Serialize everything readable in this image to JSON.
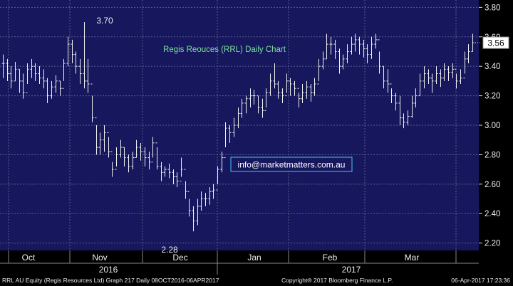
{
  "chart_data": {
    "type": "ohlc",
    "title": "Regis Reouces (RRL) Daily Chart",
    "watermark": "info@marketmatters.com.au",
    "ylim": [
      2.15,
      3.85
    ],
    "yticks": [
      "2.20",
      "2.40",
      "2.60",
      "2.80",
      "3.00",
      "3.20",
      "3.40",
      "3.60",
      "3.80"
    ],
    "last_price_label": "3.56",
    "annotations": {
      "high_label": "3.70",
      "low_label": "2.28"
    },
    "months": [
      "Oct",
      "Nov",
      "Dec",
      "Jan",
      "Feb",
      "Mar"
    ],
    "years": [
      "2016",
      "2017"
    ],
    "colors": {
      "background": "#16175c",
      "grid": "#5a5c8f",
      "bars": "#f0f0f0",
      "title": "#7fe0a0",
      "watermark_border": "#4fc3f7"
    },
    "grid": true,
    "series": [
      {
        "h": 3.48,
        "l": 3.32,
        "c": 3.42
      },
      {
        "h": 3.45,
        "l": 3.3,
        "c": 3.35
      },
      {
        "h": 3.4,
        "l": 3.25,
        "c": 3.3
      },
      {
        "h": 3.43,
        "l": 3.3,
        "c": 3.38
      },
      {
        "h": 3.38,
        "l": 3.22,
        "c": 3.3
      },
      {
        "h": 3.35,
        "l": 3.18,
        "c": 3.22
      },
      {
        "h": 3.42,
        "l": 3.28,
        "c": 3.38
      },
      {
        "h": 3.45,
        "l": 3.32,
        "c": 3.4
      },
      {
        "h": 3.42,
        "l": 3.3,
        "c": 3.35
      },
      {
        "h": 3.4,
        "l": 3.28,
        "c": 3.32
      },
      {
        "h": 3.38,
        "l": 3.25,
        "c": 3.3
      },
      {
        "h": 3.32,
        "l": 3.15,
        "c": 3.2
      },
      {
        "h": 3.3,
        "l": 3.18,
        "c": 3.26
      },
      {
        "h": 3.34,
        "l": 3.22,
        "c": 3.3
      },
      {
        "h": 3.3,
        "l": 3.2,
        "c": 3.25
      },
      {
        "h": 3.45,
        "l": 3.3,
        "c": 3.42
      },
      {
        "h": 3.6,
        "l": 3.4,
        "c": 3.55
      },
      {
        "h": 3.58,
        "l": 3.42,
        "c": 3.48
      },
      {
        "h": 3.5,
        "l": 3.35,
        "c": 3.4
      },
      {
        "h": 3.45,
        "l": 3.28,
        "c": 3.35
      },
      {
        "h": 3.7,
        "l": 3.25,
        "c": 3.3
      },
      {
        "h": 3.45,
        "l": 3.22,
        "c": 3.28
      },
      {
        "h": 3.2,
        "l": 3.02,
        "c": 3.05
      },
      {
        "h": 3.0,
        "l": 2.8,
        "c": 2.85
      },
      {
        "h": 2.95,
        "l": 2.8,
        "c": 2.9
      },
      {
        "h": 3.0,
        "l": 2.82,
        "c": 2.95
      },
      {
        "h": 2.92,
        "l": 2.78,
        "c": 2.82
      },
      {
        "h": 2.75,
        "l": 2.65,
        "c": 2.7
      },
      {
        "h": 2.85,
        "l": 2.72,
        "c": 2.8
      },
      {
        "h": 2.9,
        "l": 2.78,
        "c": 2.85
      },
      {
        "h": 2.85,
        "l": 2.72,
        "c": 2.78
      },
      {
        "h": 2.8,
        "l": 2.68,
        "c": 2.72
      },
      {
        "h": 2.82,
        "l": 2.7,
        "c": 2.78
      },
      {
        "h": 2.9,
        "l": 2.78,
        "c": 2.85
      },
      {
        "h": 2.88,
        "l": 2.76,
        "c": 2.82
      },
      {
        "h": 2.85,
        "l": 2.72,
        "c": 2.78
      },
      {
        "h": 2.82,
        "l": 2.7,
        "c": 2.75
      },
      {
        "h": 2.92,
        "l": 2.78,
        "c": 2.88
      },
      {
        "h": 2.85,
        "l": 2.7,
        "c": 2.72
      },
      {
        "h": 2.75,
        "l": 2.62,
        "c": 2.68
      },
      {
        "h": 2.72,
        "l": 2.65,
        "c": 2.7
      },
      {
        "h": 2.74,
        "l": 2.64,
        "c": 2.68
      },
      {
        "h": 2.7,
        "l": 2.6,
        "c": 2.65
      },
      {
        "h": 2.68,
        "l": 2.58,
        "c": 2.62
      },
      {
        "h": 2.78,
        "l": 2.65,
        "c": 2.7
      },
      {
        "h": 2.62,
        "l": 2.5,
        "c": 2.55
      },
      {
        "h": 2.5,
        "l": 2.38,
        "c": 2.42
      },
      {
        "h": 2.45,
        "l": 2.28,
        "c": 2.35
      },
      {
        "h": 2.5,
        "l": 2.32,
        "c": 2.45
      },
      {
        "h": 2.55,
        "l": 2.42,
        "c": 2.5
      },
      {
        "h": 2.54,
        "l": 2.45,
        "c": 2.5
      },
      {
        "h": 2.58,
        "l": 2.46,
        "c": 2.55
      },
      {
        "h": 2.6,
        "l": 2.5,
        "c": 2.56
      },
      {
        "h": 2.72,
        "l": 2.6,
        "c": 2.7
      },
      {
        "h": 2.82,
        "l": 2.68,
        "c": 2.78
      },
      {
        "h": 3.02,
        "l": 2.85,
        "c": 2.98
      },
      {
        "h": 3.0,
        "l": 2.88,
        "c": 2.95
      },
      {
        "h": 3.05,
        "l": 2.92,
        "c": 3.0
      },
      {
        "h": 3.12,
        "l": 2.98,
        "c": 3.08
      },
      {
        "h": 3.18,
        "l": 3.05,
        "c": 3.15
      },
      {
        "h": 3.2,
        "l": 3.08,
        "c": 3.18
      },
      {
        "h": 3.25,
        "l": 3.12,
        "c": 3.2
      },
      {
        "h": 3.24,
        "l": 3.14,
        "c": 3.2
      },
      {
        "h": 3.2,
        "l": 3.08,
        "c": 3.12
      },
      {
        "h": 3.18,
        "l": 3.05,
        "c": 3.1
      },
      {
        "h": 3.25,
        "l": 3.12,
        "c": 3.22
      },
      {
        "h": 3.35,
        "l": 3.2,
        "c": 3.3
      },
      {
        "h": 3.42,
        "l": 3.25,
        "c": 3.28
      },
      {
        "h": 3.3,
        "l": 3.18,
        "c": 3.22
      },
      {
        "h": 3.25,
        "l": 3.15,
        "c": 3.2
      },
      {
        "h": 3.35,
        "l": 3.22,
        "c": 3.3
      },
      {
        "h": 3.32,
        "l": 3.2,
        "c": 3.28
      },
      {
        "h": 3.3,
        "l": 3.2,
        "c": 3.25
      },
      {
        "h": 3.22,
        "l": 3.12,
        "c": 3.18
      },
      {
        "h": 3.28,
        "l": 3.15,
        "c": 3.22
      },
      {
        "h": 3.3,
        "l": 3.18,
        "c": 3.26
      },
      {
        "h": 3.28,
        "l": 3.16,
        "c": 3.22
      },
      {
        "h": 3.32,
        "l": 3.2,
        "c": 3.28
      },
      {
        "h": 3.45,
        "l": 3.3,
        "c": 3.4
      },
      {
        "h": 3.5,
        "l": 3.38,
        "c": 3.45
      },
      {
        "h": 3.62,
        "l": 3.45,
        "c": 3.55
      },
      {
        "h": 3.6,
        "l": 3.48,
        "c": 3.55
      },
      {
        "h": 3.58,
        "l": 3.45,
        "c": 3.5
      },
      {
        "h": 3.52,
        "l": 3.35,
        "c": 3.4
      },
      {
        "h": 3.48,
        "l": 3.38,
        "c": 3.45
      },
      {
        "h": 3.55,
        "l": 3.42,
        "c": 3.5
      },
      {
        "h": 3.6,
        "l": 3.48,
        "c": 3.55
      },
      {
        "h": 3.62,
        "l": 3.5,
        "c": 3.58
      },
      {
        "h": 3.6,
        "l": 3.48,
        "c": 3.55
      },
      {
        "h": 3.58,
        "l": 3.46,
        "c": 3.52
      },
      {
        "h": 3.55,
        "l": 3.42,
        "c": 3.48
      },
      {
        "h": 3.6,
        "l": 3.45,
        "c": 3.55
      },
      {
        "h": 3.62,
        "l": 3.52,
        "c": 3.58
      },
      {
        "h": 3.5,
        "l": 3.35,
        "c": 3.4
      },
      {
        "h": 3.4,
        "l": 3.25,
        "c": 3.3
      },
      {
        "h": 3.38,
        "l": 3.22,
        "c": 3.28
      },
      {
        "h": 3.25,
        "l": 3.15,
        "c": 3.2
      },
      {
        "h": 3.22,
        "l": 3.1,
        "c": 3.15
      },
      {
        "h": 3.2,
        "l": 3.0,
        "c": 3.05
      },
      {
        "h": 3.08,
        "l": 2.98,
        "c": 3.02
      },
      {
        "h": 3.1,
        "l": 3.0,
        "c": 3.06
      },
      {
        "h": 3.2,
        "l": 3.05,
        "c": 3.15
      },
      {
        "h": 3.25,
        "l": 3.12,
        "c": 3.2
      },
      {
        "h": 3.35,
        "l": 3.2,
        "c": 3.3
      },
      {
        "h": 3.4,
        "l": 3.25,
        "c": 3.35
      },
      {
        "h": 3.38,
        "l": 3.28,
        "c": 3.32
      },
      {
        "h": 3.35,
        "l": 3.22,
        "c": 3.3
      },
      {
        "h": 3.4,
        "l": 3.28,
        "c": 3.35
      },
      {
        "h": 3.38,
        "l": 3.26,
        "c": 3.32
      },
      {
        "h": 3.42,
        "l": 3.3,
        "c": 3.38
      },
      {
        "h": 3.4,
        "l": 3.3,
        "c": 3.36
      },
      {
        "h": 3.42,
        "l": 3.32,
        "c": 3.38
      },
      {
        "h": 3.35,
        "l": 3.25,
        "c": 3.3
      },
      {
        "h": 3.38,
        "l": 3.28,
        "c": 3.32
      },
      {
        "h": 3.5,
        "l": 3.35,
        "c": 3.45
      },
      {
        "h": 3.55,
        "l": 3.42,
        "c": 3.5
      },
      {
        "h": 3.62,
        "l": 3.5,
        "c": 3.56
      }
    ]
  },
  "footer": {
    "left": "RRL AU Equity (Regis Resources Ltd) Graph 217  Daily 08OCT2016-06APR2017",
    "center": "Copyright® 2017 Bloomberg Finance L.P.",
    "right": "06-Apr-2017 17:23:36"
  }
}
